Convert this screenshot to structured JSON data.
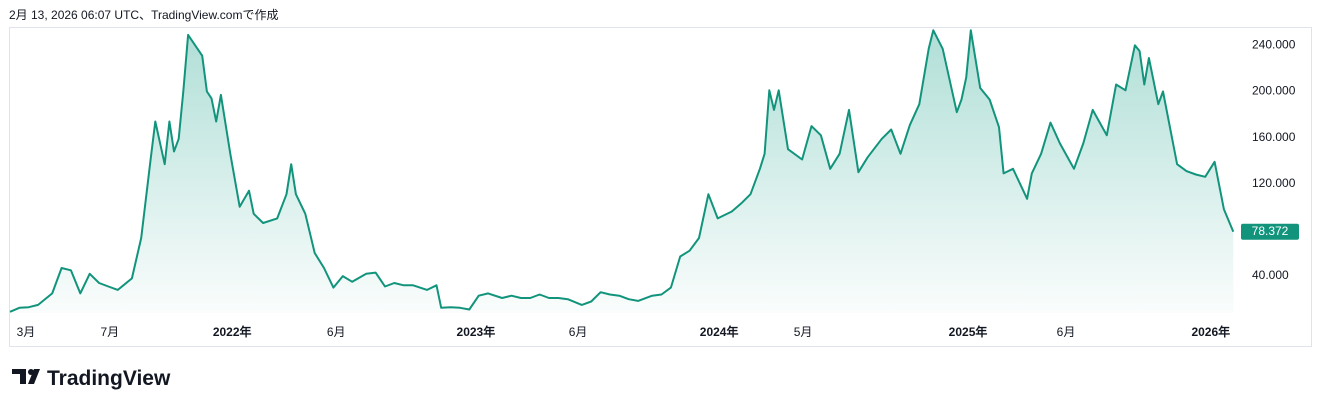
{
  "header": "2月 13, 2026 06:07 UTC、TradingView.comで作成",
  "footer": {
    "logo_text": "TradingView"
  },
  "chart_data": {
    "type": "area",
    "xlim": [
      0,
      262
    ],
    "ylim": [
      8,
      255
    ],
    "yticks": [
      {
        "value": 40,
        "label": "40.000"
      },
      {
        "value": 120,
        "label": "120.000"
      },
      {
        "value": 160,
        "label": "160.000"
      },
      {
        "value": 200,
        "label": "200.000"
      },
      {
        "value": 240,
        "label": "240.000"
      }
    ],
    "xticks": [
      {
        "value": 3.4,
        "label": "3月"
      },
      {
        "value": 21.3,
        "label": "7月"
      },
      {
        "value": 47.4,
        "label": "2022年"
      },
      {
        "value": 69.6,
        "label": "6月"
      },
      {
        "value": 99.4,
        "label": "2023年"
      },
      {
        "value": 121.2,
        "label": "6月"
      },
      {
        "value": 151.3,
        "label": "2024年"
      },
      {
        "value": 169.2,
        "label": "5月"
      },
      {
        "value": 204.4,
        "label": "2025年"
      },
      {
        "value": 225.3,
        "label": "6月"
      },
      {
        "value": 256.2,
        "label": "2026年"
      }
    ],
    "grid": false,
    "series": [
      {
        "color": "#12947c",
        "x": [
          0,
          2,
          4,
          6,
          9,
          11,
          13,
          15,
          17,
          19,
          21,
          23,
          26,
          28,
          30,
          31,
          33,
          34,
          35,
          36,
          37,
          38,
          41,
          42,
          43,
          44,
          45,
          47,
          49,
          51,
          52,
          54,
          57,
          59,
          60,
          61,
          63,
          65,
          67,
          69,
          71,
          73,
          76,
          78,
          80,
          82,
          84,
          86,
          89,
          91,
          92,
          94,
          96,
          98,
          100,
          102,
          105,
          107,
          109,
          111,
          113,
          115,
          117,
          119,
          122,
          124,
          126,
          128,
          130,
          132,
          134,
          137,
          139,
          141,
          143,
          145,
          147,
          149,
          151,
          154,
          156,
          158,
          160,
          161,
          162,
          163,
          164,
          166,
          169,
          171,
          173,
          175,
          177,
          179,
          181,
          183,
          186,
          188,
          190,
          192,
          194,
          196,
          197,
          199,
          202,
          203,
          204,
          205,
          207,
          209,
          211,
          212,
          214,
          217,
          218,
          220,
          222,
          224,
          227,
          229,
          231,
          234,
          236,
          238,
          240,
          241,
          242,
          243,
          245,
          246,
          249,
          251,
          253,
          255,
          257,
          259,
          261
        ],
        "values": [
          9,
          12.5,
          13,
          15,
          25,
          47,
          45,
          25,
          42,
          34,
          31,
          28,
          38,
          73,
          141,
          174,
          137,
          174,
          148,
          159,
          201,
          249,
          231,
          200,
          194,
          174,
          197,
          146,
          100,
          114,
          94,
          86,
          90,
          111,
          137,
          111,
          94,
          60,
          47,
          30,
          40,
          35,
          42,
          43,
          31,
          34,
          32,
          32,
          28,
          32,
          12.5,
          13,
          12.5,
          11,
          23,
          25,
          21,
          23,
          21,
          21,
          24,
          21,
          21,
          20,
          15,
          18,
          26,
          24,
          23,
          20,
          18.5,
          23,
          24,
          30,
          57,
          62,
          73,
          111,
          90,
          96,
          103,
          111,
          133,
          146,
          201,
          184,
          201,
          150,
          141,
          170,
          162,
          133,
          146,
          184,
          130,
          143,
          159,
          167,
          146,
          171,
          189,
          237,
          253,
          237,
          182,
          193,
          212,
          253,
          203,
          193,
          169,
          129,
          133,
          107,
          129,
          146,
          173,
          155,
          133,
          155,
          184,
          162,
          206,
          201,
          240,
          235,
          206,
          229,
          189,
          200,
          137,
          131,
          128,
          126,
          139,
          98,
          78.372
        ]
      }
    ]
  }
}
